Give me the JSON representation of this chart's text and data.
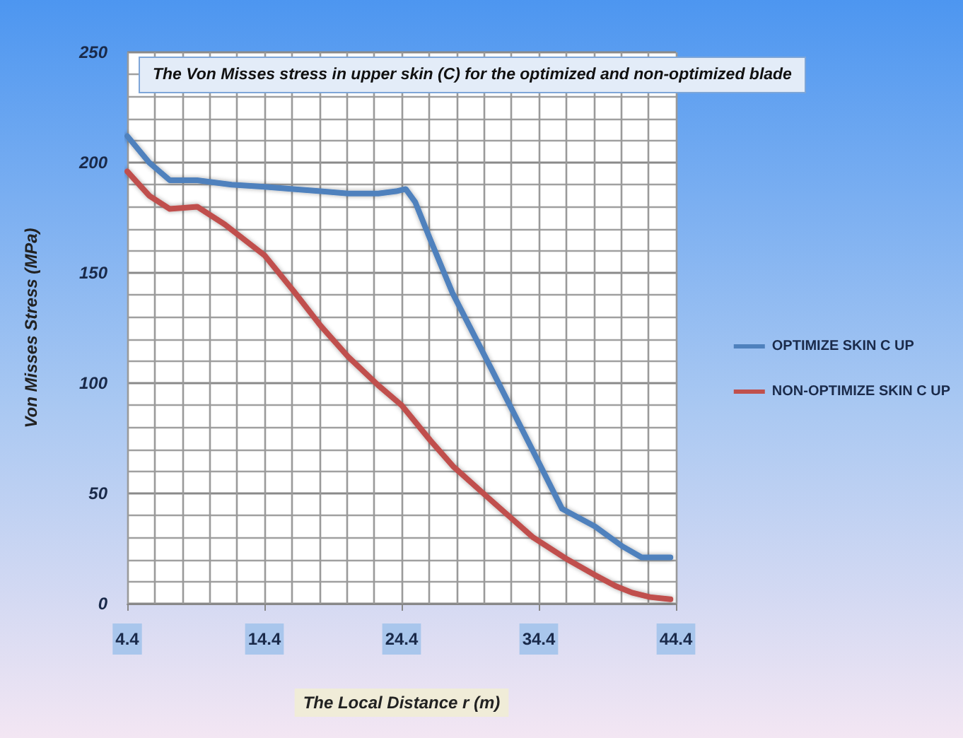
{
  "chart_data": {
    "type": "line",
    "title": "The Von Misses stress in upper skin (C) for the optimized and non-optimized blade",
    "xlabel": "The Local Distance r (m)",
    "ylabel": "Von Misses Stress (MPa)",
    "xlim": [
      4.4,
      44.4
    ],
    "xticks": [
      4.4,
      14.4,
      24.4,
      34.4,
      44.4
    ],
    "ylim": [
      0,
      250
    ],
    "yticks": [
      0,
      50,
      100,
      150,
      200,
      250
    ],
    "grid": true,
    "legend": "right",
    "marker": "none",
    "line_style": "solid",
    "series": [
      {
        "name": "OPTIMIZE SKIN C UP",
        "color": "#4f81bd",
        "x": [
          4.4,
          6,
          7.5,
          9.5,
          12,
          14.4,
          16.5,
          18.5,
          20.5,
          22.7,
          24,
          24.7,
          25.4,
          26.5,
          28.1,
          30.9,
          34,
          36.1,
          38.5,
          40.5,
          41.9,
          44
        ],
        "values": [
          212,
          200,
          192,
          192,
          190,
          189,
          188,
          187,
          186,
          186,
          187,
          188,
          182,
          165,
          141,
          107,
          69,
          43,
          35,
          26,
          21,
          21
        ]
      },
      {
        "name": "NON-OPTIMIZE SKIN C UP",
        "color": "#c0504d",
        "x": [
          4.4,
          6,
          7.5,
          9.5,
          11.5,
          14.4,
          16.5,
          18.5,
          20.5,
          22.7,
          24.4,
          26.5,
          28.2,
          30.9,
          34,
          36.5,
          38.5,
          40,
          41.2,
          42.5,
          44
        ],
        "values": [
          196,
          185,
          179,
          180,
          172,
          158,
          142,
          126,
          112,
          99,
          90,
          74,
          62,
          47,
          30,
          20,
          13,
          8,
          5,
          3,
          2
        ]
      }
    ]
  }
}
